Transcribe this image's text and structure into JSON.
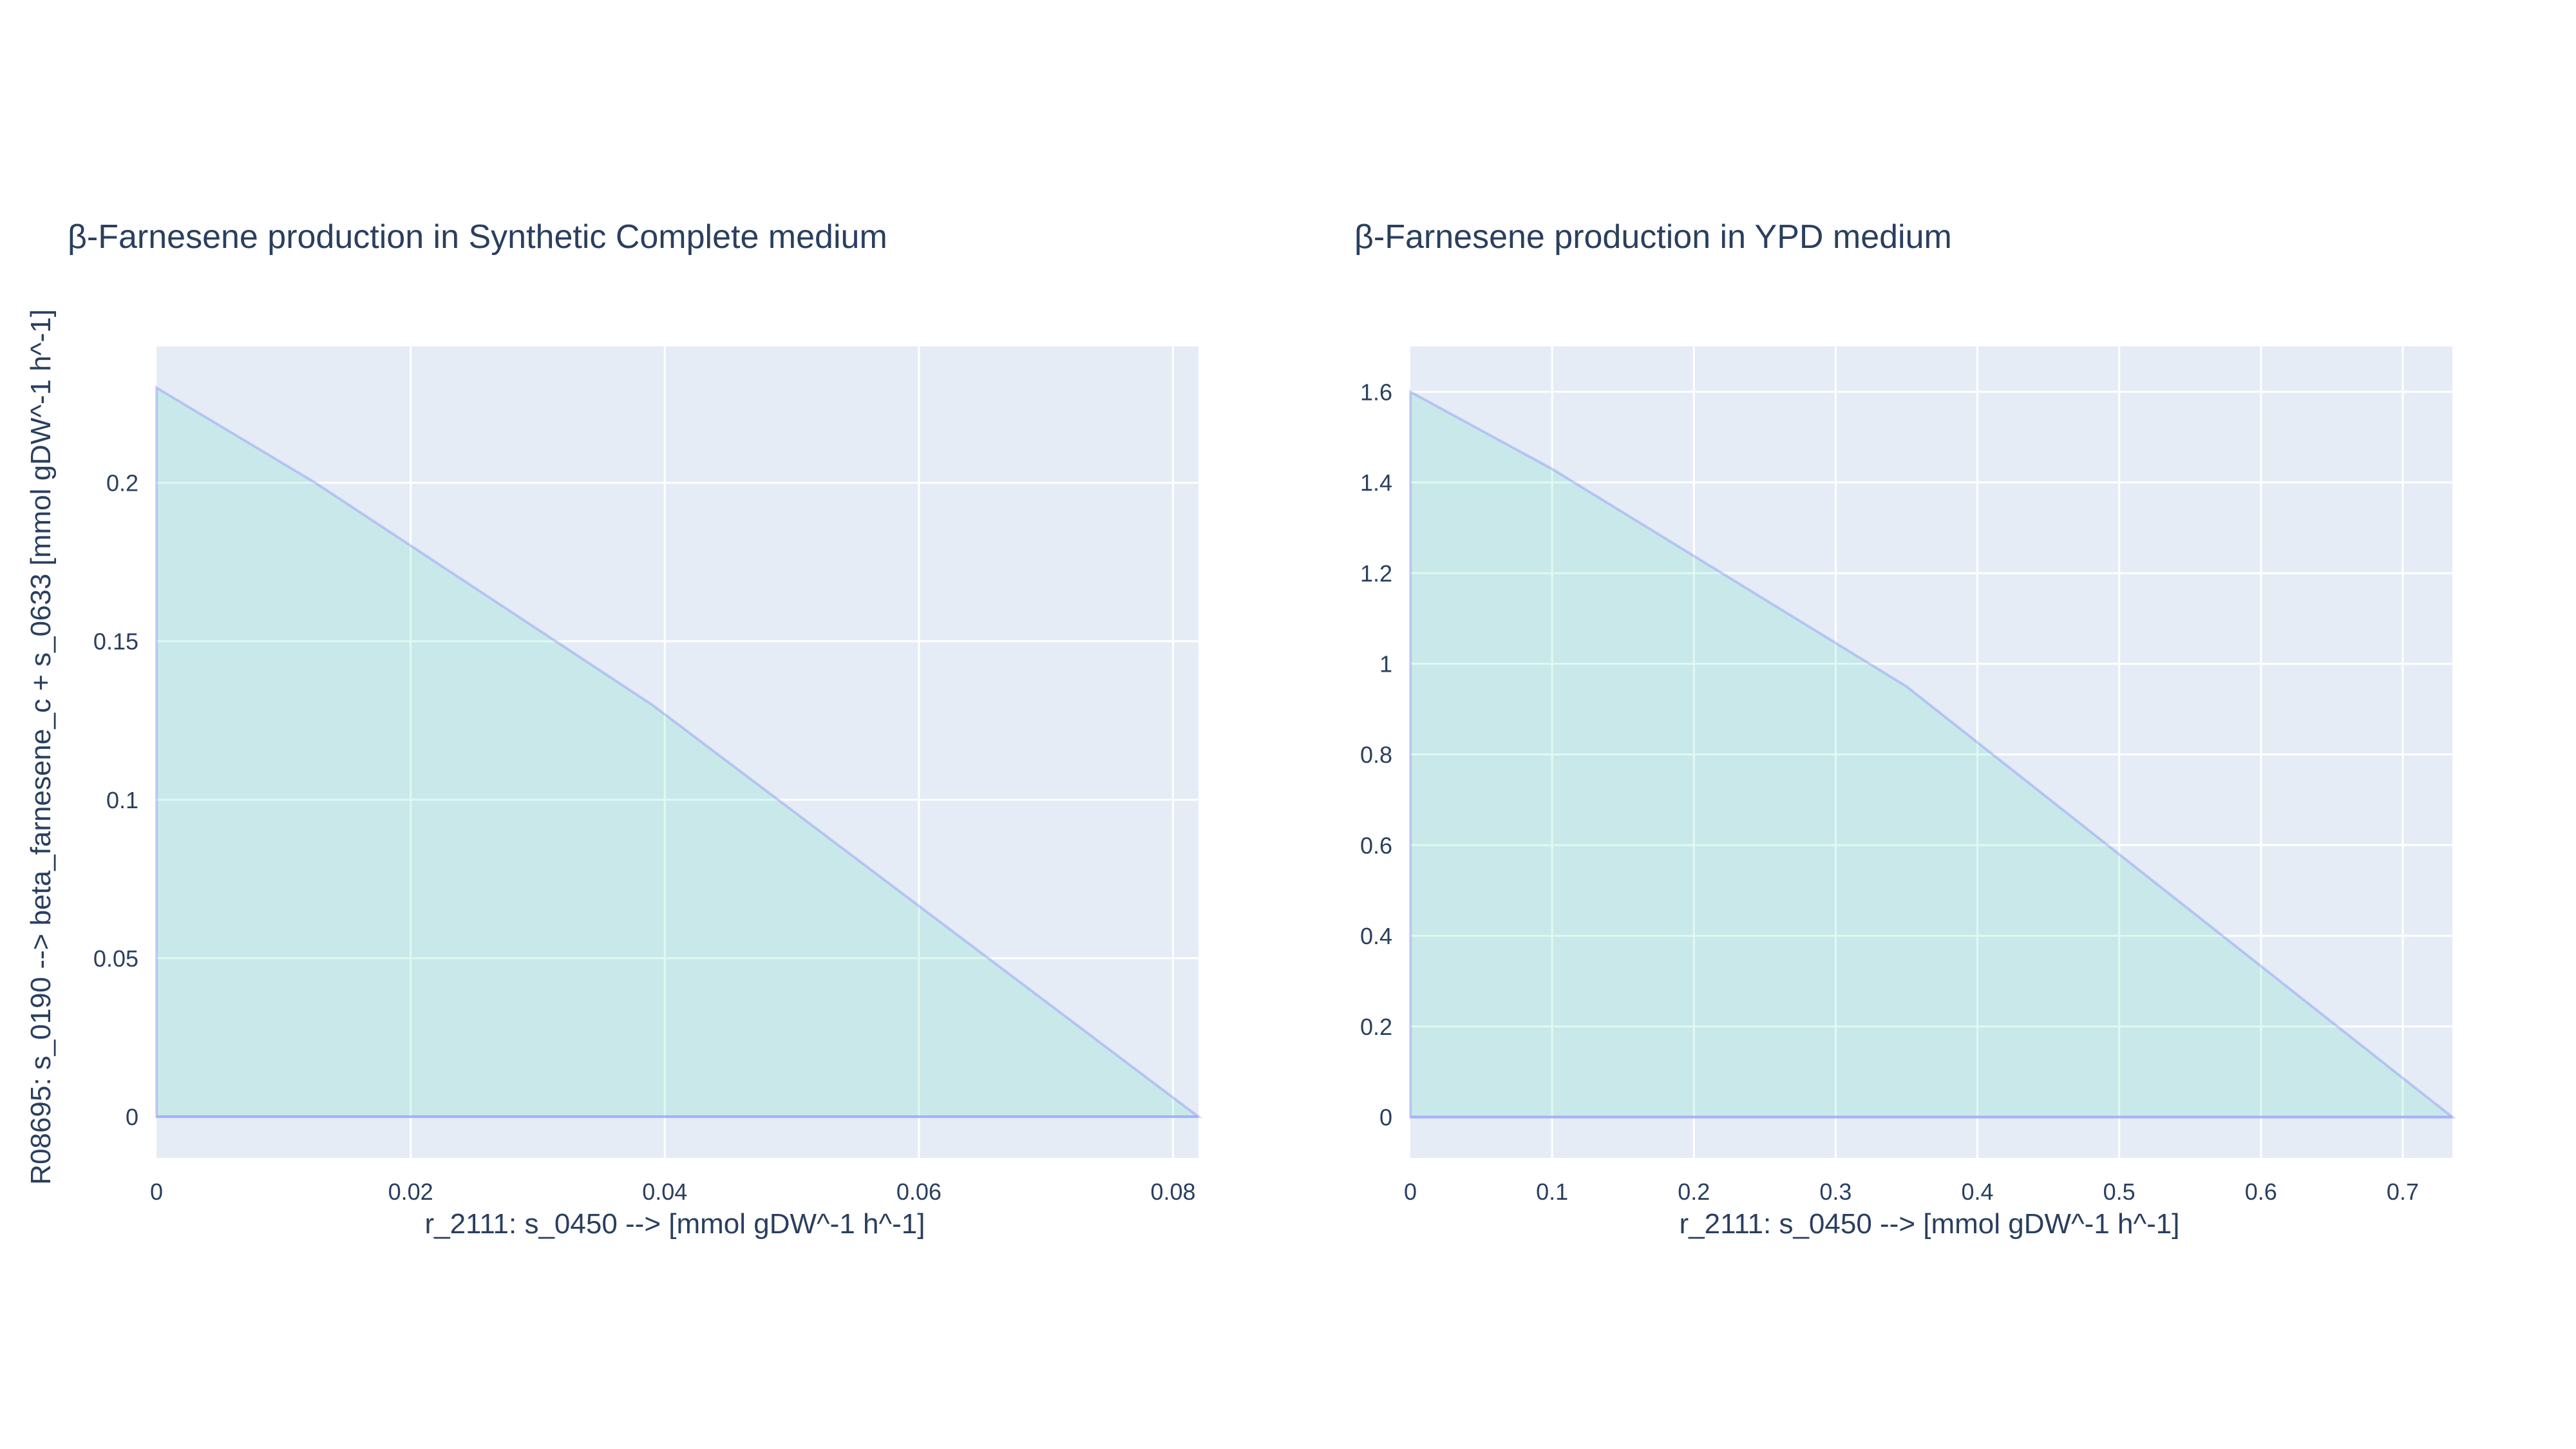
{
  "shared_ylabel": "R08695: s_0190 --> beta_farnesene_c + s_0633 [mmol gDW^-1 h^-1]",
  "colors": {
    "fill": "#00cc96",
    "line": "#636efa",
    "plot_bg": "#e5ecf6",
    "grid": "#ffffff",
    "text": "#2a3f5f"
  },
  "chart_data": [
    {
      "type": "area",
      "title": "β-Farnesene production in Synthetic Complete medium",
      "xlabel": "r_2111: s_0450 -->  [mmol gDW^-1 h^-1]",
      "ylabel": "R08695: s_0190 --> beta_farnesene_c + s_0633 [mmol gDW^-1 h^-1]",
      "xlim": [
        0,
        0.082
      ],
      "ylim": [
        -0.013,
        0.243
      ],
      "xticks": [
        0,
        0.02,
        0.04,
        0.06,
        0.08
      ],
      "xtick_labels": [
        "0",
        "0.02",
        "0.04",
        "0.06",
        "0.08"
      ],
      "yticks": [
        0,
        0.05,
        0.1,
        0.15,
        0.2
      ],
      "ytick_labels": [
        "0",
        "0.05",
        "0.1",
        "0.15",
        "0.2"
      ],
      "grid": true,
      "series": [
        {
          "x": [
            0,
            0.0125,
            0.039,
            0.082
          ],
          "y_max": [
            0.23,
            0.2,
            0.13,
            0.0
          ],
          "y_min": [
            0,
            0,
            0,
            0
          ]
        }
      ]
    },
    {
      "type": "area",
      "title": "β-Farnesene production in YPD medium",
      "xlabel": "r_2111: s_0450 -->  [mmol gDW^-1 h^-1]",
      "ylabel": "",
      "xlim": [
        0,
        0.735
      ],
      "ylim": [
        -0.09,
        1.7
      ],
      "xticks": [
        0,
        0.1,
        0.2,
        0.3,
        0.4,
        0.5,
        0.6,
        0.7
      ],
      "xtick_labels": [
        "0",
        "0.1",
        "0.2",
        "0.3",
        "0.4",
        "0.5",
        "0.6",
        "0.7"
      ],
      "yticks": [
        0,
        0.2,
        0.4,
        0.6,
        0.8,
        1,
        1.2,
        1.4,
        1.6
      ],
      "ytick_labels": [
        "0",
        "0.2",
        "0.4",
        "0.6",
        "0.8",
        "1",
        "1.2",
        "1.4",
        "1.6"
      ],
      "grid": true,
      "series": [
        {
          "x": [
            0,
            0.1,
            0.35,
            0.735
          ],
          "y_max": [
            1.6,
            1.43,
            0.95,
            0.0
          ],
          "y_min": [
            0,
            0,
            0,
            0
          ]
        }
      ]
    }
  ]
}
